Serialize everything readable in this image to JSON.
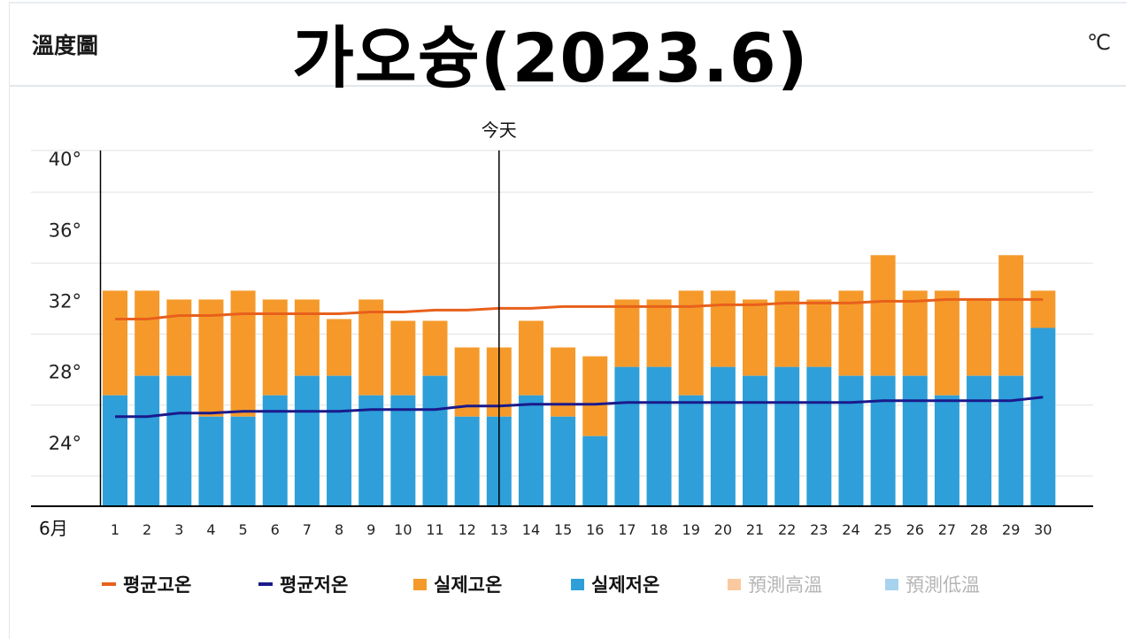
{
  "header": {
    "section_label": "溫度圖",
    "title": "가오슝(2023.6)",
    "unit": "℃"
  },
  "legend": [
    {
      "label": "평균고온",
      "kind": "line",
      "color": "#e8601c",
      "faint": false
    },
    {
      "label": "평균저온",
      "kind": "line",
      "color": "#1a1a8c",
      "faint": false
    },
    {
      "label": "실제고온",
      "kind": "box",
      "color": "#f59a2a",
      "faint": false
    },
    {
      "label": "실제저온",
      "kind": "box",
      "color": "#2e9fd9",
      "faint": false
    },
    {
      "label": "預測高溫",
      "kind": "box",
      "color": "#fbc9a0",
      "faint": true
    },
    {
      "label": "預測低溫",
      "kind": "box",
      "color": "#a7d3ee",
      "faint": true
    }
  ],
  "chart_data": {
    "type": "bar",
    "x_axis_label": "6月",
    "today_label": "今天",
    "today_day": 13,
    "y_tick_labels": [
      "24°",
      "28°",
      "32°",
      "36°",
      "40°"
    ],
    "y_ticks": [
      24,
      28,
      32,
      36,
      40
    ],
    "ylim": [
      21.9,
      41.9
    ],
    "grid": true,
    "categories": [
      "1",
      "2",
      "3",
      "4",
      "5",
      "6",
      "7",
      "8",
      "9",
      "10",
      "11",
      "12",
      "13",
      "14",
      "15",
      "16",
      "17",
      "18",
      "19",
      "20",
      "21",
      "22",
      "23",
      "24",
      "25",
      "26",
      "27",
      "28",
      "29",
      "30"
    ],
    "colors": {
      "high": "#f59a2a",
      "low": "#2e9fd9",
      "avg_high": "#e8601c",
      "avg_low": "#1a1a8c"
    },
    "series": [
      {
        "name": "실제고온",
        "values": [
          34,
          34,
          33.5,
          33.5,
          34,
          33.5,
          33.5,
          32.4,
          33.5,
          32.3,
          32.3,
          30.8,
          30.8,
          32.3,
          30.8,
          30.3,
          33.5,
          33.5,
          34,
          34,
          33.5,
          34,
          33.5,
          34,
          36,
          34,
          34,
          33.5,
          36,
          34
        ]
      },
      {
        "name": "실제저온",
        "values": [
          28.1,
          29.2,
          29.2,
          26.9,
          26.9,
          28.1,
          29.2,
          29.2,
          28.1,
          28.1,
          29.2,
          26.9,
          26.9,
          28.1,
          26.9,
          25.8,
          29.7,
          29.7,
          28.1,
          29.7,
          29.2,
          29.7,
          29.7,
          29.2,
          29.2,
          29.2,
          28.1,
          29.2,
          29.2,
          31.9
        ]
      },
      {
        "name": "평균고온",
        "values": [
          32.4,
          32.4,
          32.6,
          32.6,
          32.7,
          32.7,
          32.7,
          32.7,
          32.8,
          32.8,
          32.9,
          32.9,
          33.0,
          33.0,
          33.1,
          33.1,
          33.1,
          33.1,
          33.1,
          33.2,
          33.2,
          33.3,
          33.3,
          33.3,
          33.4,
          33.4,
          33.5,
          33.5,
          33.5,
          33.5
        ]
      },
      {
        "name": "평균저온",
        "values": [
          26.9,
          26.9,
          27.1,
          27.1,
          27.2,
          27.2,
          27.2,
          27.2,
          27.3,
          27.3,
          27.3,
          27.5,
          27.5,
          27.6,
          27.6,
          27.6,
          27.7,
          27.7,
          27.7,
          27.7,
          27.7,
          27.7,
          27.7,
          27.7,
          27.8,
          27.8,
          27.8,
          27.8,
          27.8,
          28.0
        ]
      }
    ]
  }
}
